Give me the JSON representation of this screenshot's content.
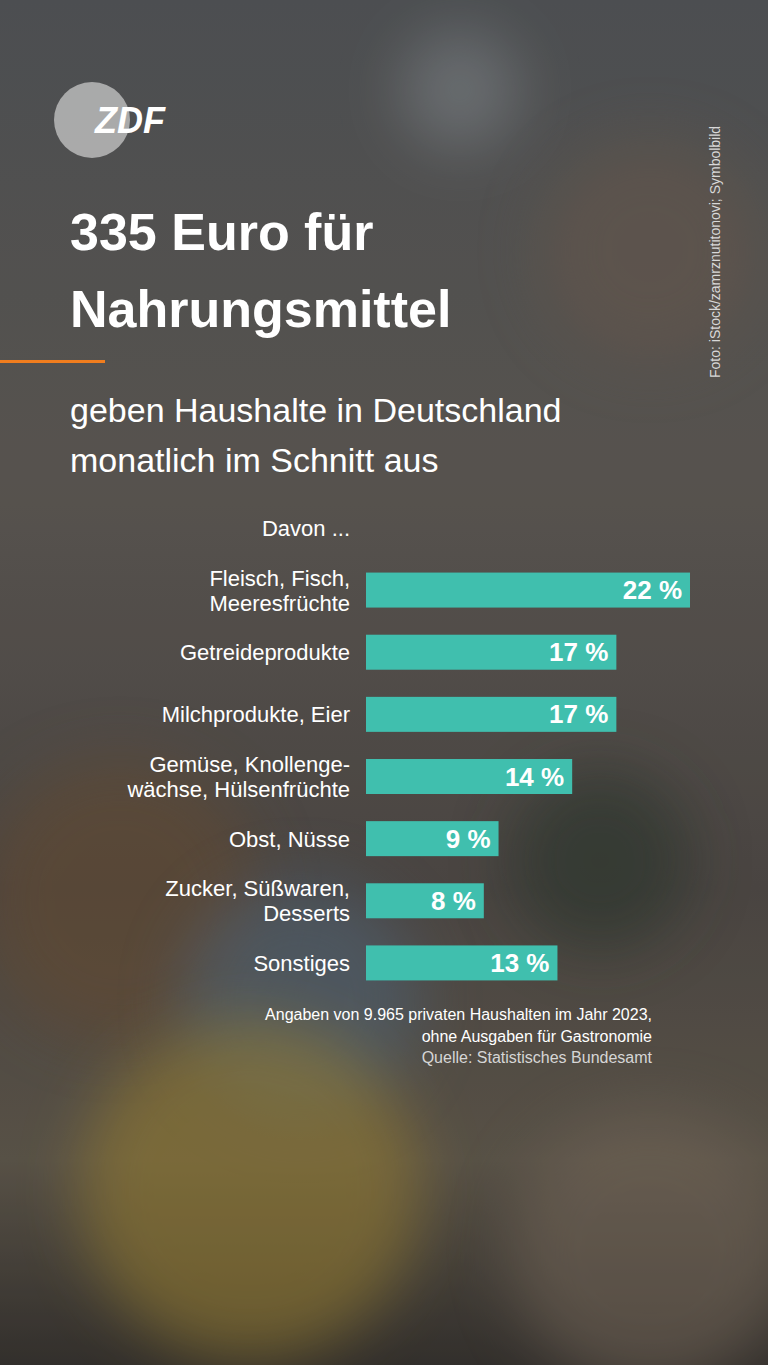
{
  "chart_data": {
    "type": "bar",
    "orientation": "horizontal",
    "logo": "ZDF",
    "credit": "Foto: iStock/zamrznutitonovi; Symbolbild",
    "title": "335 Euro für\nNahrungsmittel",
    "subtitle": "geben Haushalte in Deutschland\nmonatlich im Schnitt aus",
    "group_label": "Davon ...",
    "categories": [
      "Fleisch, Fisch,\nMeeresfrüchte",
      "Getreideprodukte",
      "Milchprodukte, Eier",
      "Gemüse, Knollenge-\nwächse, Hülsenfrüchte",
      "Obst, Nüsse",
      "Zucker, Süßwaren,\nDesserts",
      "Sonstiges"
    ],
    "values": [
      22,
      17,
      17,
      14,
      9,
      8,
      13
    ],
    "value_labels": [
      "22 %",
      "17 %",
      "17 %",
      "14 %",
      "9 %",
      "8 %",
      "13 %"
    ],
    "data_labels": true,
    "color": "#40bfae",
    "xlim": [
      0,
      22
    ],
    "tick_labels": false,
    "grid": false,
    "note": "Angaben von 9.965 privaten Haushalten im Jahr 2023,\nohne Ausgaben für Gastronomie",
    "source": "Quelle: Statistisches Bundesamt"
  }
}
